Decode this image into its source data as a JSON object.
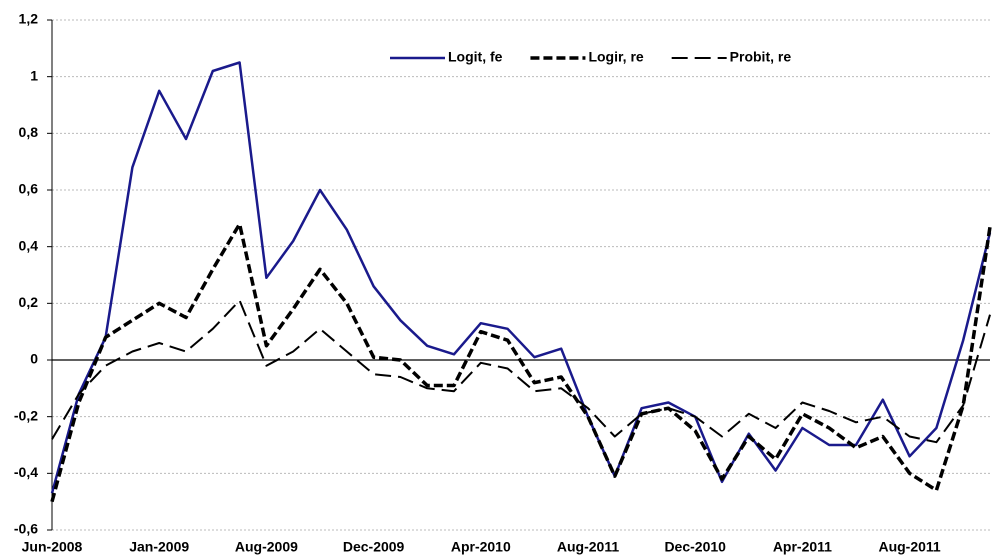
{
  "chart_data": {
    "type": "line",
    "categories": [
      "Jun-2008",
      null,
      null,
      null,
      "Jan-2009",
      null,
      null,
      null,
      "Aug-2009",
      null,
      null,
      null,
      "Dec-2009",
      null,
      null,
      null,
      "Apr-2010",
      null,
      null,
      null,
      "Aug-2011",
      null,
      null,
      null,
      "Dec-2010",
      null,
      null,
      null,
      "Apr-2011",
      null,
      null,
      null,
      "Aug-2011",
      null,
      null,
      null
    ],
    "series": [
      {
        "name": "Logit, fe",
        "color": "#1a1a8c",
        "style": "solid",
        "values": [
          -0.47,
          -0.12,
          0.08,
          0.68,
          0.95,
          0.78,
          1.02,
          1.05,
          0.29,
          0.42,
          0.6,
          0.46,
          0.26,
          0.14,
          0.05,
          0.02,
          0.13,
          0.11,
          0.01,
          0.04,
          -0.2,
          -0.41,
          -0.17,
          -0.15,
          -0.2,
          -0.43,
          -0.26,
          -0.39,
          -0.24,
          -0.3,
          -0.3,
          -0.14,
          -0.34,
          -0.24,
          0.07,
          0.45
        ]
      },
      {
        "name": "Logir, re",
        "color": "#000000",
        "style": "heavy-dash",
        "values": [
          -0.5,
          -0.15,
          0.08,
          0.14,
          0.2,
          0.15,
          0.32,
          0.48,
          0.05,
          0.18,
          0.32,
          0.2,
          0.01,
          0.0,
          -0.09,
          -0.09,
          0.1,
          0.07,
          -0.08,
          -0.06,
          -0.2,
          -0.41,
          -0.19,
          -0.17,
          -0.25,
          -0.42,
          -0.27,
          -0.35,
          -0.19,
          -0.24,
          -0.31,
          -0.27,
          -0.4,
          -0.46,
          -0.16,
          0.47
        ]
      },
      {
        "name": "Probit, re",
        "color": "#000000",
        "style": "long-dash",
        "values": [
          -0.28,
          -0.12,
          -0.02,
          0.03,
          0.06,
          0.03,
          0.11,
          0.21,
          -0.02,
          0.03,
          0.11,
          0.03,
          -0.05,
          -0.06,
          -0.1,
          -0.11,
          -0.01,
          -0.03,
          -0.11,
          -0.1,
          -0.17,
          -0.27,
          -0.19,
          -0.17,
          -0.2,
          -0.27,
          -0.19,
          -0.24,
          -0.15,
          -0.18,
          -0.22,
          -0.2,
          -0.27,
          -0.29,
          -0.16,
          0.16
        ]
      }
    ],
    "ylim": [
      -0.6,
      1.2
    ],
    "yticks": [
      {
        "value": -0.6,
        "label": "-0,6"
      },
      {
        "value": -0.4,
        "label": "-0,4"
      },
      {
        "value": -0.2,
        "label": "-0,2"
      },
      0,
      {
        "value": 0.2,
        "label": "0,2"
      },
      {
        "value": 0.4,
        "label": "0,4"
      },
      {
        "value": 0.6,
        "label": "0,6"
      },
      {
        "value": 0.8,
        "label": "0,8"
      },
      1,
      {
        "value": 1.2,
        "label": "1,2"
      }
    ],
    "grid": true,
    "legend": "top"
  }
}
